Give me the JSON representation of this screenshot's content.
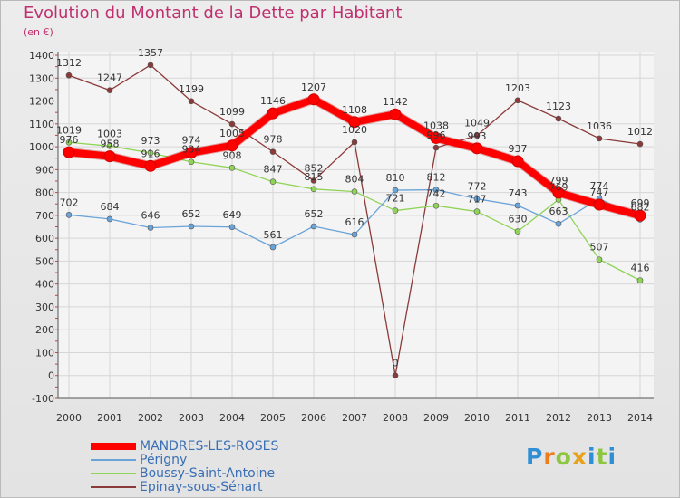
{
  "title": "Evolution du Montant de la Dette par Habitant",
  "unit_label": "(en €)",
  "logo": {
    "letters": [
      "P",
      "r",
      "o",
      "x",
      "i",
      "t",
      "i"
    ],
    "colors": [
      "#2f8fd6",
      "#ef7c1a",
      "#8dc63f",
      "#e8a21a",
      "#2f8fd6",
      "#8dc63f",
      "#2f8fd6"
    ]
  },
  "chart_data": {
    "type": "line",
    "title": "Evolution du Montant de la Dette par Habitant",
    "ylabel": "(en €)",
    "ylim": [
      -100,
      1400
    ],
    "yticks": [
      -100,
      0,
      100,
      200,
      300,
      400,
      500,
      600,
      700,
      800,
      900,
      1000,
      1100,
      1200,
      1300,
      1400
    ],
    "categories": [
      "2000",
      "2001",
      "2002",
      "2003",
      "2004",
      "2005",
      "2006",
      "2007",
      "2008",
      "2009",
      "2010",
      "2011",
      "2012",
      "2013",
      "2014"
    ],
    "grid": true,
    "legend_position": "bottom-left",
    "series": [
      {
        "name": "MANDRES-LES-ROSES",
        "color": "#ff0000",
        "values": [
          976,
          958,
          916,
          974,
          1005,
          1146,
          1207,
          1108,
          1142,
          1038,
          993,
          937,
          799,
          747,
          699
        ],
        "labels": [
          "976",
          "958",
          "916",
          "974",
          "1005",
          "1146",
          "1207",
          "1108",
          "1142",
          "1038",
          "993",
          "937",
          "799",
          "747",
          "699"
        ]
      },
      {
        "name": "Périgny",
        "color": "#6aa3d8",
        "values": [
          702,
          684,
          646,
          652,
          649,
          561,
          652,
          616,
          810,
          812,
          772,
          743,
          663,
          774,
          682
        ],
        "labels": [
          "702",
          "684",
          "646",
          "652",
          "649",
          "561",
          "652",
          "616",
          "810",
          "812",
          "772",
          "743",
          "663",
          "774",
          "682"
        ]
      },
      {
        "name": "Boussy-Saint-Antoine",
        "color": "#8fd456",
        "values": [
          1019,
          1003,
          973,
          934,
          908,
          847,
          815,
          804,
          721,
          742,
          717,
          630,
          769,
          507,
          416
        ],
        "labels": [
          "1019",
          "1003",
          "973",
          "934",
          "908",
          "847",
          "815",
          "804",
          "721",
          "742",
          "717",
          "630",
          "769",
          "507",
          "416"
        ]
      },
      {
        "name": "Epinay-sous-Sénart",
        "color": "#8b3a3a",
        "values": [
          1312,
          1247,
          1357,
          1199,
          1099,
          978,
          852,
          1020,
          0,
          996,
          1049,
          1203,
          1123,
          1036,
          1012
        ],
        "labels": [
          "1312",
          "1247",
          "1357",
          "1199",
          "1099",
          "978",
          "852",
          "1020",
          "0",
          "996",
          "1049",
          "1203",
          "1123",
          "1036",
          "1012"
        ]
      }
    ]
  }
}
